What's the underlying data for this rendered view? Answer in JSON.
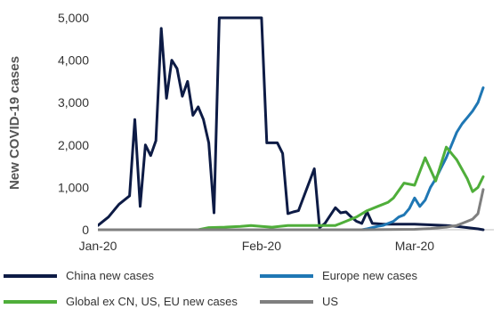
{
  "chart_data": {
    "type": "line",
    "title": "",
    "xlabel": "",
    "ylabel": "New COVID-19 cases",
    "ylim": [
      0,
      5000
    ],
    "yticks": [
      0,
      1000,
      2000,
      3000,
      4000,
      5000
    ],
    "ytick_labels": [
      "0",
      "1,000",
      "2,000",
      "3,000",
      "4,000",
      "5,000"
    ],
    "xlim": [
      "2020-01-01",
      "2020-03-14"
    ],
    "xticks": [
      "2020-01-01",
      "2020-02-01",
      "2020-03-01"
    ],
    "xtick_labels": [
      "Jan-20",
      "Feb-20",
      "Mar-20"
    ],
    "grid": false,
    "legend_position": "bottom",
    "series": [
      {
        "name": "China new cases",
        "color": "#0d1b45",
        "x": [
          "2020-01-01",
          "2020-01-03",
          "2020-01-05",
          "2020-01-07",
          "2020-01-08",
          "2020-01-09",
          "2020-01-10",
          "2020-01-11",
          "2020-01-12",
          "2020-01-13",
          "2020-01-14",
          "2020-01-15",
          "2020-01-16",
          "2020-01-17",
          "2020-01-18",
          "2020-01-19",
          "2020-01-20",
          "2020-01-21",
          "2020-01-22",
          "2020-01-23",
          "2020-01-24",
          "2020-01-25",
          "2020-01-26",
          "2020-01-27",
          "2020-01-28",
          "2020-01-29",
          "2020-02-01",
          "2020-02-02",
          "2020-02-04",
          "2020-02-05",
          "2020-02-06",
          "2020-02-07",
          "2020-02-08",
          "2020-02-11",
          "2020-02-12",
          "2020-02-13",
          "2020-02-15",
          "2020-02-16",
          "2020-02-17",
          "2020-02-18",
          "2020-02-19",
          "2020-02-20",
          "2020-02-21",
          "2020-02-22",
          "2020-02-23",
          "2020-02-24",
          "2020-02-25",
          "2020-02-26",
          "2020-02-27",
          "2020-02-28",
          "2020-03-01",
          "2020-03-03",
          "2020-03-05",
          "2020-03-07",
          "2020-03-09",
          "2020-03-11",
          "2020-03-13",
          "2020-03-14"
        ],
        "y": [
          100,
          300,
          600,
          800,
          2600,
          550,
          2000,
          1750,
          2100,
          4750,
          3100,
          4000,
          3800,
          3150,
          3500,
          2700,
          2900,
          2600,
          2050,
          400,
          5000,
          5000,
          5000,
          5000,
          5000,
          5000,
          5000,
          2050,
          2050,
          1800,
          380,
          420,
          450,
          1440,
          50,
          150,
          520,
          400,
          420,
          300,
          200,
          150,
          420,
          150,
          140,
          130,
          130,
          130,
          130,
          130,
          130,
          120,
          110,
          100,
          80,
          50,
          20,
          0
        ]
      },
      {
        "name": "Europe new cases",
        "color": "#1f77b4",
        "x": [
          "2020-01-01",
          "2020-02-01",
          "2020-02-20",
          "2020-02-21",
          "2020-02-22",
          "2020-02-23",
          "2020-02-24",
          "2020-02-25",
          "2020-02-26",
          "2020-02-27",
          "2020-02-28",
          "2020-02-29",
          "2020-03-01",
          "2020-03-02",
          "2020-03-03",
          "2020-03-04",
          "2020-03-05",
          "2020-03-06",
          "2020-03-07",
          "2020-03-08",
          "2020-03-09",
          "2020-03-10",
          "2020-03-11",
          "2020-03-12",
          "2020-03-13",
          "2020-03-14"
        ],
        "y": [
          0,
          0,
          0,
          20,
          50,
          80,
          100,
          150,
          200,
          300,
          350,
          500,
          750,
          550,
          700,
          1000,
          1200,
          1450,
          1700,
          2000,
          2300,
          2500,
          2650,
          2800,
          3000,
          3350
        ]
      },
      {
        "name": "Global ex CN, US, EU new cases",
        "color": "#4fae3a",
        "x": [
          "2020-01-01",
          "2020-01-20",
          "2020-01-22",
          "2020-01-25",
          "2020-01-28",
          "2020-01-30",
          "2020-02-01",
          "2020-02-03",
          "2020-02-06",
          "2020-02-09",
          "2020-02-12",
          "2020-02-14",
          "2020-02-15",
          "2020-02-17",
          "2020-02-19",
          "2020-02-21",
          "2020-02-23",
          "2020-02-25",
          "2020-02-26",
          "2020-02-28",
          "2020-03-01",
          "2020-03-03",
          "2020-03-05",
          "2020-03-07",
          "2020-03-09",
          "2020-03-11",
          "2020-03-12",
          "2020-03-13",
          "2020-03-14"
        ],
        "y": [
          0,
          0,
          50,
          60,
          80,
          100,
          80,
          60,
          100,
          100,
          100,
          100,
          100,
          200,
          300,
          450,
          550,
          650,
          750,
          1100,
          1050,
          1700,
          1150,
          1950,
          1650,
          1200,
          900,
          1000,
          1250
        ]
      },
      {
        "name": "US",
        "color": "#7f7f7f",
        "x": [
          "2020-01-01",
          "2020-02-20",
          "2020-03-01",
          "2020-03-04",
          "2020-03-07",
          "2020-03-09",
          "2020-03-10",
          "2020-03-11",
          "2020-03-12",
          "2020-03-13",
          "2020-03-14"
        ],
        "y": [
          0,
          0,
          10,
          30,
          60,
          100,
          150,
          200,
          250,
          380,
          950
        ]
      }
    ]
  }
}
